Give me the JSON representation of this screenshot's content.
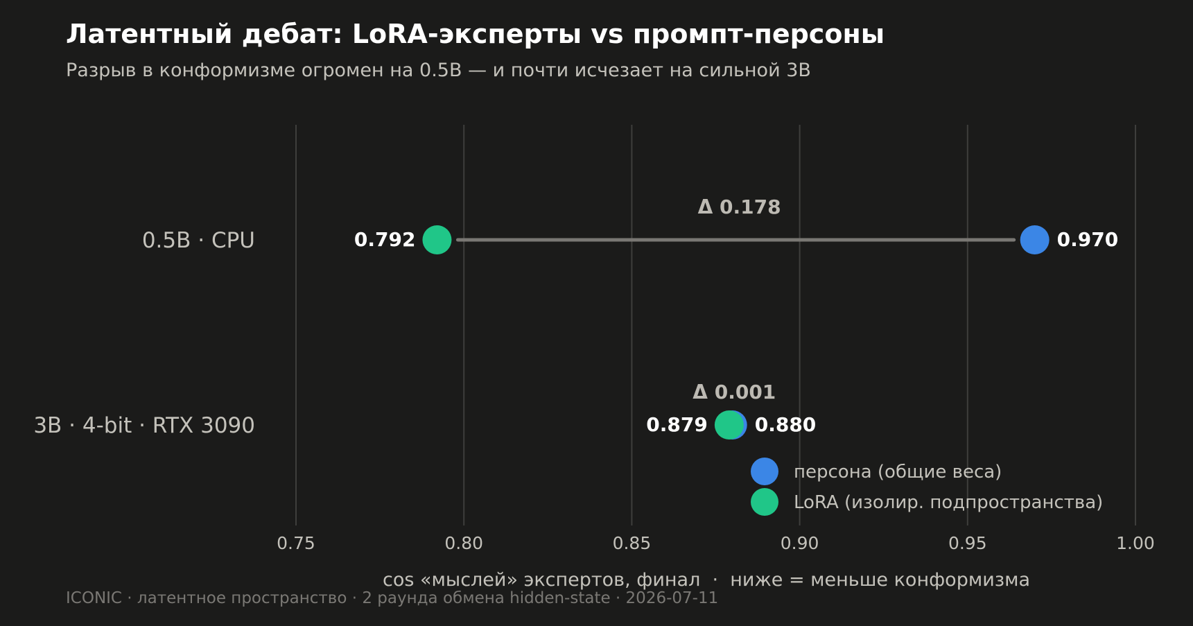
{
  "chart_data": {
    "type": "dumbbell",
    "title": "Латентный дебат: LoRA-эксперты vs промпт-персоны",
    "subtitle": "Разрыв в конформизме огромен на 0.5B — и почти исчезает на сильной 3B",
    "xlabel": "cos «мыслей» экспертов, финал  ·  ниже = меньше конформизма",
    "xlim": [
      0.75,
      1.0
    ],
    "xticks": [
      "0.75",
      "0.80",
      "0.85",
      "0.90",
      "0.95",
      "1.00"
    ],
    "xtick_values": [
      0.75,
      0.8,
      0.85,
      0.9,
      0.95,
      1.0
    ],
    "grid": "vertical",
    "legend_position": "bottom-right",
    "categories": [
      "0.5B · CPU",
      "3B · 4-bit · RTX 3090"
    ],
    "series": [
      {
        "name": "персона (общие веса)",
        "color": "#3b86e6",
        "values": [
          0.97,
          0.88
        ],
        "labels": [
          "0.970",
          "0.880"
        ]
      },
      {
        "name": "LoRA (изолир. подпространства)",
        "color": "#20c688",
        "values": [
          0.792,
          0.879
        ],
        "labels": [
          "0.792",
          "0.879"
        ]
      }
    ],
    "deltas": [
      "Δ 0.178",
      "Δ 0.001"
    ],
    "footer": "ICONIC · латентное пространство · 2 раунда обмена hidden-state · 2026-07-11"
  },
  "colors": {
    "background": "#1b1b1a",
    "title": "#ffffff",
    "subtitle": "#c4c2bb",
    "grid": "#3e3e3c",
    "connector": "#7a7874",
    "tick_label": "#c4c2bb",
    "delta_label": "#bdbab3",
    "value_label": "#ffffff",
    "footer": "#7a7874"
  }
}
